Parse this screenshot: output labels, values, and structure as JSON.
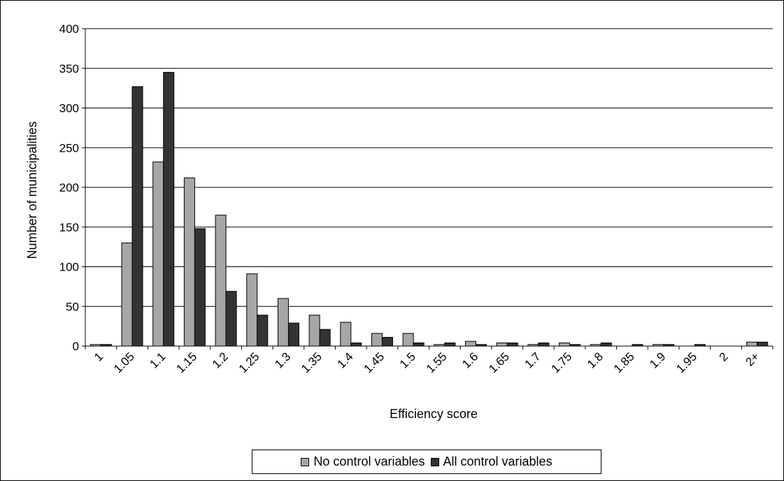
{
  "chart_data": {
    "type": "bar",
    "title": "",
    "xlabel": "Efficiency score",
    "ylabel": "Number of municipalities",
    "ylim": [
      0,
      400
    ],
    "yticks": [
      0,
      50,
      100,
      150,
      200,
      250,
      300,
      350,
      400
    ],
    "grid": true,
    "legend_position": "bottom",
    "categories": [
      "1",
      "1.05",
      "1.1",
      "1.15",
      "1.2",
      "1.25",
      "1.3",
      "1.35",
      "1.4",
      "1.45",
      "1.5",
      "1.55",
      "1.6",
      "1.65",
      "1.7",
      "1.75",
      "1.8",
      "1.85",
      "1.9",
      "1.95",
      "2",
      "2+"
    ],
    "series": [
      {
        "name": "No control variables",
        "color": "#a6a6a6",
        "values": [
          2,
          130,
          232,
          212,
          165,
          91,
          60,
          39,
          30,
          16,
          16,
          2,
          6,
          4,
          2,
          4,
          2,
          0,
          2,
          0,
          0,
          5
        ]
      },
      {
        "name": "All control variables",
        "color": "#333333",
        "values": [
          2,
          327,
          345,
          148,
          69,
          39,
          29,
          21,
          4,
          11,
          4,
          4,
          2,
          4,
          4,
          2,
          4,
          2,
          2,
          2,
          0,
          5
        ]
      }
    ]
  }
}
